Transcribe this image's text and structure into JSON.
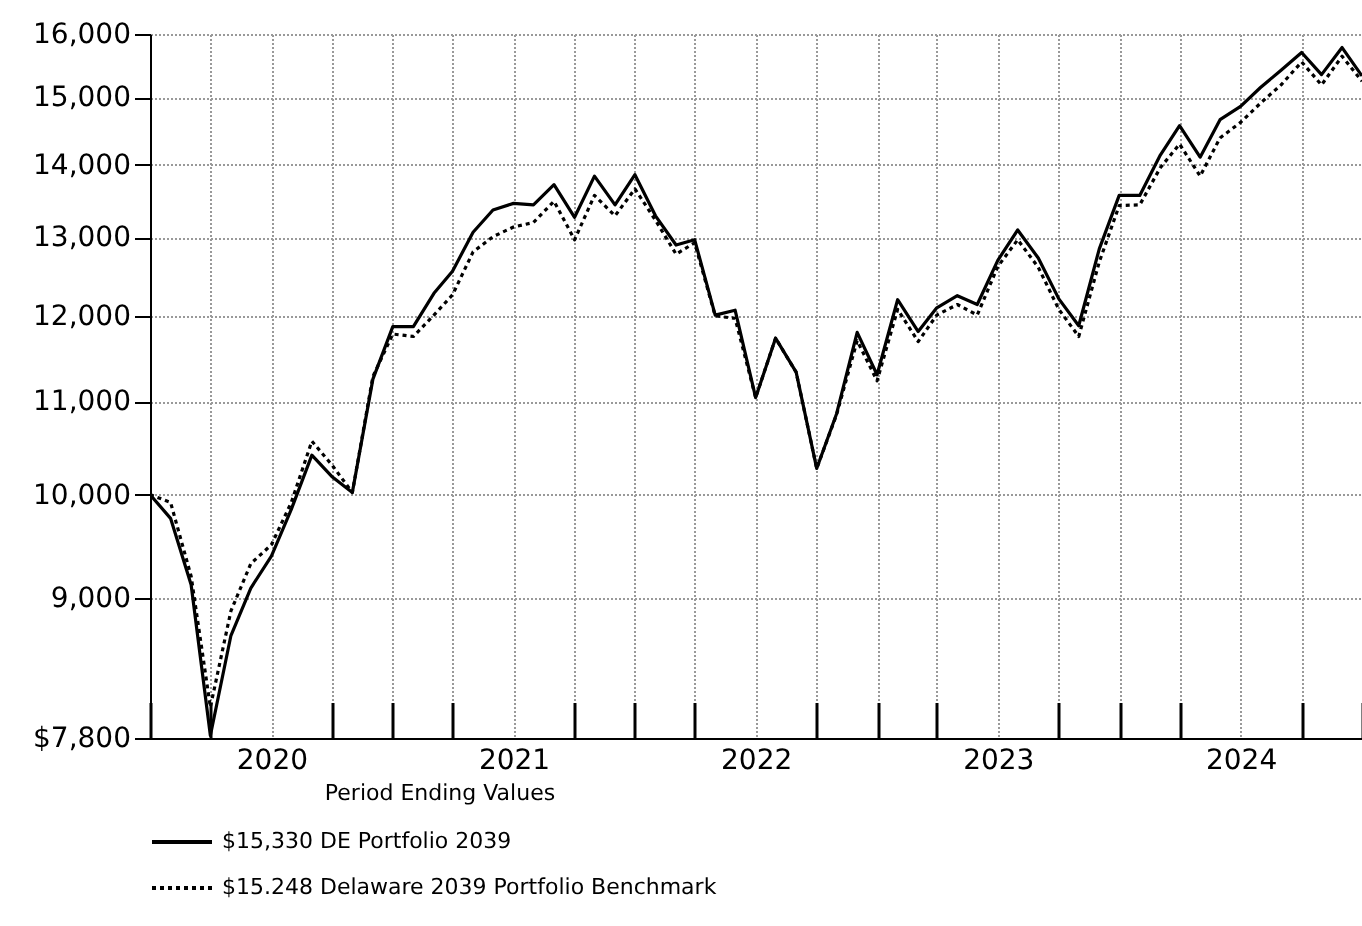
{
  "chart_data": {
    "type": "line",
    "xlabel": null,
    "legend_title": "Period Ending Values",
    "x": [
      "2019-12",
      "2020-01",
      "2020-02",
      "2020-03",
      "2020-04",
      "2020-05",
      "2020-06",
      "2020-07",
      "2020-08",
      "2020-09",
      "2020-10",
      "2020-11",
      "2020-12",
      "2021-01",
      "2021-02",
      "2021-03",
      "2021-04",
      "2021-05",
      "2021-06",
      "2021-07",
      "2021-08",
      "2021-09",
      "2021-10",
      "2021-11",
      "2021-12",
      "2022-01",
      "2022-02",
      "2022-03",
      "2022-04",
      "2022-05",
      "2022-06",
      "2022-07",
      "2022-08",
      "2022-09",
      "2022-10",
      "2022-11",
      "2022-12",
      "2023-01",
      "2023-02",
      "2023-03",
      "2023-04",
      "2023-05",
      "2023-06",
      "2023-07",
      "2023-08",
      "2023-09",
      "2023-10",
      "2023-11",
      "2023-12",
      "2024-01",
      "2024-02",
      "2024-03",
      "2024-04",
      "2024-05",
      "2024-06",
      "2024-07",
      "2024-08",
      "2024-09",
      "2024-10",
      "2024-11",
      "2024-12"
    ],
    "series": [
      {
        "name": "$15,330   DE Portfolio 2039",
        "color": "#000000",
        "line_style": "solid",
        "values": [
          10000,
          9760,
          9120,
          7820,
          8660,
          9090,
          9390,
          9850,
          10410,
          10180,
          10020,
          11250,
          11870,
          11870,
          12280,
          12560,
          13070,
          13370,
          13460,
          13440,
          13720,
          13270,
          13840,
          13440,
          13860,
          13290,
          12900,
          12970,
          12010,
          12070,
          11040,
          11730,
          11330,
          10270,
          10860,
          11800,
          11300,
          12200,
          11810,
          12100,
          12250,
          12140,
          12700,
          13100,
          12730,
          12210,
          11880,
          12850,
          13570,
          13570,
          14140,
          14570,
          14110,
          14660,
          14860,
          15150,
          15420,
          15700,
          15350,
          15780,
          15330
        ]
      },
      {
        "name": "$15.248   Delaware 2039 Portfolio Benchmark",
        "color": "#000000",
        "line_style": "dotted",
        "values": [
          10000,
          9920,
          9200,
          8050,
          8880,
          9320,
          9500,
          9920,
          10560,
          10300,
          10020,
          11280,
          11780,
          11750,
          12010,
          12260,
          12810,
          13010,
          13140,
          13200,
          13490,
          12970,
          13570,
          13290,
          13660,
          13230,
          12780,
          12930,
          12000,
          11970,
          11040,
          11730,
          11330,
          10270,
          10850,
          11700,
          11230,
          12080,
          11690,
          12010,
          12140,
          12010,
          12620,
          12970,
          12610,
          12080,
          11750,
          12680,
          13430,
          13440,
          13960,
          14300,
          13840,
          14390,
          14620,
          14910,
          15190,
          15550,
          15190,
          15640,
          15248
        ]
      }
    ],
    "log": true,
    "ylim": [
      7800,
      16000
    ],
    "yticks": [
      {
        "value": 7800,
        "label": "$7,800"
      },
      {
        "value": 9000,
        "label": "9,000"
      },
      {
        "value": 10000,
        "label": "10,000"
      },
      {
        "value": 11000,
        "label": "11,000"
      },
      {
        "value": 12000,
        "label": "12,000"
      },
      {
        "value": 13000,
        "label": "13,000"
      },
      {
        "value": 14000,
        "label": "14,000"
      },
      {
        "value": 15000,
        "label": "15,000"
      },
      {
        "value": 16000,
        "label": "16,000"
      }
    ],
    "xlim": [
      "2019-12",
      "2024-12"
    ],
    "xticks": [
      {
        "value": "2019-12",
        "label": null
      },
      {
        "value": "2020-03",
        "label": null
      },
      {
        "value": "2020-06",
        "label": "2020"
      },
      {
        "value": "2020-09",
        "label": null
      },
      {
        "value": "2020-12",
        "label": null
      },
      {
        "value": "2021-03",
        "label": null
      },
      {
        "value": "2021-06",
        "label": "2021"
      },
      {
        "value": "2021-09",
        "label": null
      },
      {
        "value": "2021-12",
        "label": null
      },
      {
        "value": "2022-03",
        "label": null
      },
      {
        "value": "2022-06",
        "label": "2022"
      },
      {
        "value": "2022-09",
        "label": null
      },
      {
        "value": "2022-12",
        "label": null
      },
      {
        "value": "2023-03",
        "label": null
      },
      {
        "value": "2023-06",
        "label": "2023"
      },
      {
        "value": "2023-09",
        "label": null
      },
      {
        "value": "2023-12",
        "label": null
      },
      {
        "value": "2024-03",
        "label": null
      },
      {
        "value": "2024-06",
        "label": "2024"
      },
      {
        "value": "2024-09",
        "label": null
      },
      {
        "value": "2024-12",
        "label": null
      }
    ],
    "grid": true,
    "legend": "bottom",
    "marker": "none"
  }
}
